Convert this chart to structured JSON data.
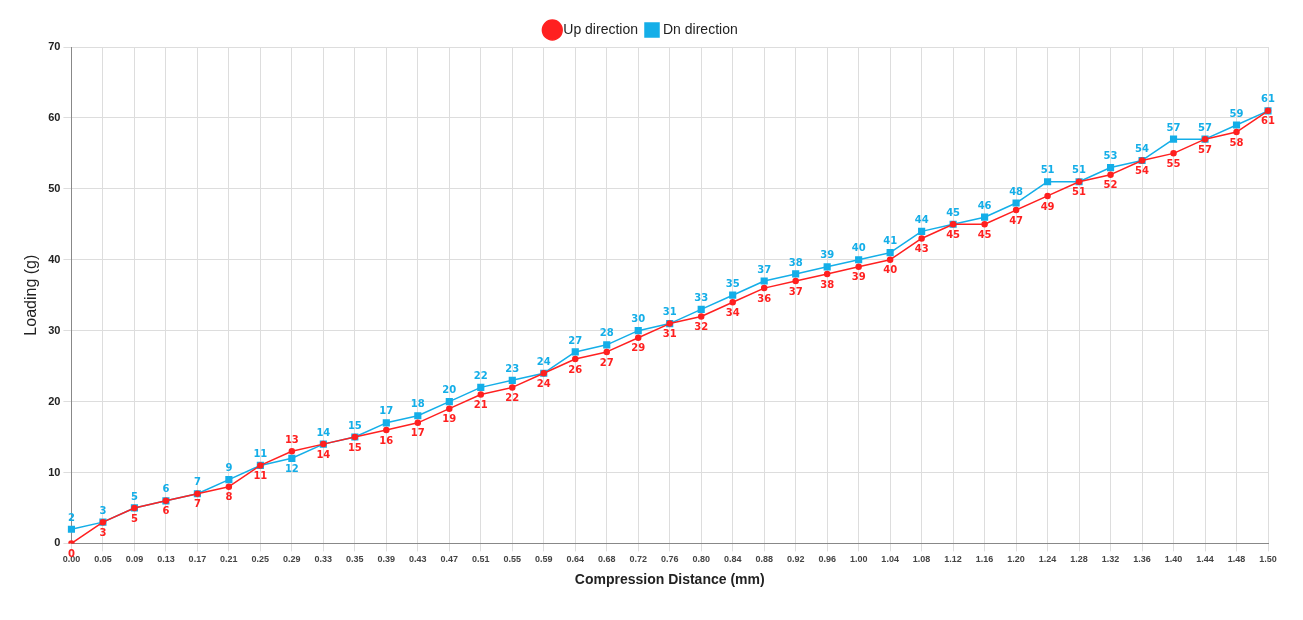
{
  "chart_data": {
    "type": "line",
    "xlabel": "Compression Distance (mm)",
    "ylabel": "Loading (g)",
    "categories": [
      "0.00",
      "0.05",
      "0.09",
      "0.13",
      "0.17",
      "0.21",
      "0.25",
      "0.29",
      "0.33",
      "0.35",
      "0.39",
      "0.43",
      "0.47",
      "0.51",
      "0.55",
      "0.59",
      "0.64",
      "0.68",
      "0.72",
      "0.76",
      "0.80",
      "0.84",
      "0.88",
      "0.92",
      "0.96",
      "1.00",
      "1.04",
      "1.08",
      "1.12",
      "1.16",
      "1.20",
      "1.24",
      "1.28",
      "1.32",
      "1.36",
      "1.40",
      "1.44",
      "1.48",
      "1.50"
    ],
    "series": [
      {
        "name": "Up direction",
        "color": "#ff2020",
        "marker": "circle",
        "values": [
          0,
          3,
          5,
          6,
          7,
          8,
          11,
          13,
          14,
          15,
          16,
          17,
          19,
          21,
          22,
          24,
          26,
          27,
          29,
          31,
          32,
          34,
          36,
          37,
          38,
          39,
          40,
          43,
          45,
          45,
          47,
          49,
          51,
          52,
          54,
          55,
          57,
          58,
          61
        ]
      },
      {
        "name": "Dn direction",
        "color": "#14aee8",
        "marker": "square",
        "values": [
          2,
          3,
          5,
          6,
          7,
          9,
          11,
          12,
          14,
          15,
          17,
          18,
          20,
          22,
          23,
          24,
          27,
          28,
          30,
          31,
          33,
          35,
          37,
          38,
          39,
          40,
          41,
          44,
          45,
          46,
          48,
          51,
          51,
          53,
          54,
          57,
          57,
          59,
          61
        ]
      }
    ],
    "ylim": [
      0,
      70
    ],
    "yticks": [
      0,
      10,
      20,
      30,
      40,
      50,
      60,
      70
    ],
    "grid": true,
    "legend": "top",
    "data_labels": true
  }
}
